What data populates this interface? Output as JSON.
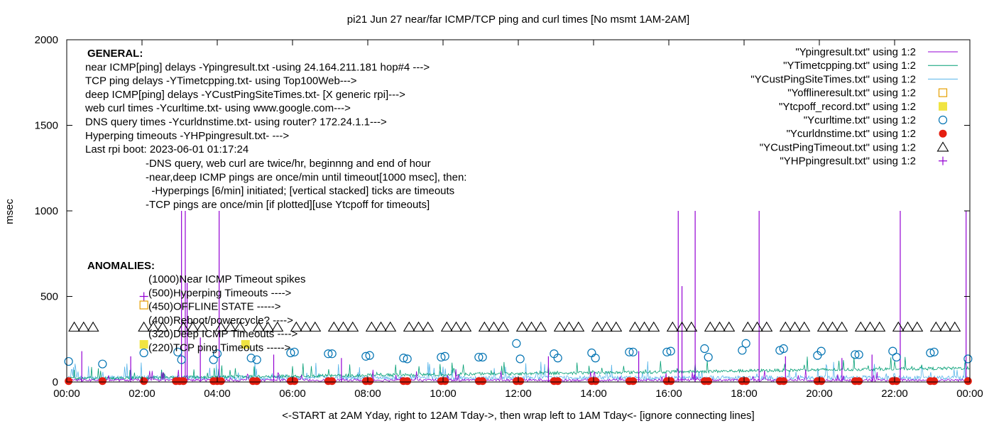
{
  "colors": {
    "ping": "#9400d3",
    "tcp": "#009e73",
    "cust": "#56b4e9",
    "offline": "#e69f00",
    "tcpoff": "#f0e442",
    "curl": "#0072b2",
    "dns": "#e51e10",
    "cust_timeout": "#000000",
    "hping": "#9400d3"
  },
  "chart_data": {
    "type": "line",
    "title": "pi21 Jun 27  near/far ICMP/TCP ping and curl times [No msmt 1AM-2AM]",
    "xlabel": "<-START at 2AM Yday, right to 12AM Tday->, then wrap left to 1AM Tday<- [ignore connecting lines]",
    "ylabel": "msec",
    "xlim": [
      0,
      24
    ],
    "ylim": [
      0,
      2000
    ],
    "grid": false,
    "legend_position": "top-right",
    "x_ticks": [
      "00:00",
      "02:00",
      "04:00",
      "06:00",
      "08:00",
      "10:00",
      "12:00",
      "14:00",
      "16:00",
      "18:00",
      "20:00",
      "22:00",
      "00:00"
    ],
    "y_ticks": [
      "0",
      "500",
      "1000",
      "1500",
      "2000"
    ],
    "y_tick_values": [
      0,
      500,
      1000,
      1500,
      2000
    ],
    "legend": [
      {
        "label": "\"Ypingresult.txt\" using 1:2",
        "kind": "line",
        "color_key": "ping"
      },
      {
        "label": "\"YTimetcpping.txt\" using 1:2",
        "kind": "line",
        "color_key": "tcp"
      },
      {
        "label": "\"YCustPingSiteTimes.txt\" using 1:2",
        "kind": "line",
        "color_key": "cust"
      },
      {
        "label": "\"Yofflineresult.txt\" using 1:2",
        "kind": "open-square",
        "color_key": "offline"
      },
      {
        "label": "\"Ytcpoff_record.txt\" using 1:2",
        "kind": "filled-square",
        "color_key": "tcpoff"
      },
      {
        "label": "\"Ycurltime.txt\" using 1:2",
        "kind": "open-circle",
        "color_key": "curl"
      },
      {
        "label": "\"Ycurldnstime.txt\" using 1:2",
        "kind": "filled-circle",
        "color_key": "dns"
      },
      {
        "label": "\"YCustPingTimeout.txt\" using 1:2",
        "kind": "open-triangle",
        "color_key": "cust_timeout"
      },
      {
        "label": "\"YHPpingresult.txt\" using 1:2",
        "kind": "plus",
        "color_key": "hping"
      }
    ],
    "general_notes": [
      "GENERAL:",
      "near ICMP[ping] delays -Ypingresult.txt -using 24.164.211.181 hop#4 --->",
      "TCP ping delays -YTimetcpping.txt- using Top100Web--->",
      "deep ICMP[ping] delays -YCustPingSiteTimes.txt- [X generic rpi]--->",
      "web curl times -Ycurltime.txt- using www.google.com--->",
      "DNS query times -Ycurldnstime.txt- using router? 172.24.1.1--->",
      "Hyperping timeouts -YHPpingresult.txt- --->",
      "Last rpi boot: 2023-06-01 01:17:24"
    ],
    "indented_notes": [
      "-DNS query, web curl are twice/hr, beginnng and end of hour",
      "-near,deep ICMP pings are once/min until timeout[1000 msec], then:",
      "  -Hyperpings [6/min] initiated; [vertical stacked] ticks are timeouts",
      "-TCP pings are once/min [if plotted][use Ytcpoff for timeouts]"
    ],
    "anomalies": {
      "heading": "ANOMALIES:",
      "items": [
        "(1000)Near ICMP Timeout spikes",
        "(500)Hyperping Timeouts ---->",
        "(450)OFFLINE STATE ----->",
        "(400)Reboot/powercycle? ---->",
        "(320)Deep ICMP Timeouts ---->",
        "(220)TCP ping Timeouts ----->"
      ],
      "marker_examples": [
        {
          "series": "hping",
          "x": 2.05,
          "y": 500
        },
        {
          "series": "offline",
          "x": 2.05,
          "y": 450
        },
        {
          "series": "tcpoff",
          "x": 2.05,
          "y": 220
        },
        {
          "series": "tcpoff",
          "x": 4.75,
          "y": 220
        }
      ]
    },
    "series": {
      "ping_spikes": [
        {
          "x": 3.05,
          "y": 1000
        },
        {
          "x": 3.15,
          "y": 1000
        },
        {
          "x": 3.2,
          "y": 580
        },
        {
          "x": 4.05,
          "y": 1000
        },
        {
          "x": 16.25,
          "y": 1000
        },
        {
          "x": 16.35,
          "y": 560
        },
        {
          "x": 16.7,
          "y": 1000
        },
        {
          "x": 18.4,
          "y": 1000
        },
        {
          "x": 22.15,
          "y": 1000
        },
        {
          "x": 23.9,
          "y": 1000
        },
        {
          "x": 3.55,
          "y": 260
        },
        {
          "x": 0.4,
          "y": 180
        },
        {
          "x": 1.7,
          "y": 150
        },
        {
          "x": 5.5,
          "y": 160
        },
        {
          "x": 7.3,
          "y": 140
        },
        {
          "x": 12.8,
          "y": 150
        },
        {
          "x": 15.2,
          "y": 180
        },
        {
          "x": 19.1,
          "y": 150
        },
        {
          "x": 20.6,
          "y": 140
        },
        {
          "x": 21.4,
          "y": 160
        }
      ],
      "tcp_trend": [
        {
          "x": 0,
          "y": 20
        },
        {
          "x": 4,
          "y": 30
        },
        {
          "x": 8,
          "y": 40
        },
        {
          "x": 12,
          "y": 50
        },
        {
          "x": 16,
          "y": 60
        },
        {
          "x": 20,
          "y": 72
        },
        {
          "x": 24,
          "y": 82
        }
      ],
      "curl": [
        {
          "x": 0.05,
          "y": 120
        },
        {
          "x": 0.95,
          "y": 105
        },
        {
          "x": 2.05,
          "y": 170
        },
        {
          "x": 2.95,
          "y": 175
        },
        {
          "x": 3.05,
          "y": 130
        },
        {
          "x": 3.9,
          "y": 130
        },
        {
          "x": 4.0,
          "y": 165
        },
        {
          "x": 4.9,
          "y": 140
        },
        {
          "x": 5.05,
          "y": 130
        },
        {
          "x": 5.95,
          "y": 170
        },
        {
          "x": 6.05,
          "y": 175
        },
        {
          "x": 6.95,
          "y": 165
        },
        {
          "x": 7.05,
          "y": 165
        },
        {
          "x": 7.95,
          "y": 150
        },
        {
          "x": 8.05,
          "y": 155
        },
        {
          "x": 8.95,
          "y": 140
        },
        {
          "x": 9.05,
          "y": 135
        },
        {
          "x": 9.95,
          "y": 145
        },
        {
          "x": 10.05,
          "y": 150
        },
        {
          "x": 10.95,
          "y": 145
        },
        {
          "x": 11.05,
          "y": 145
        },
        {
          "x": 11.95,
          "y": 225
        },
        {
          "x": 12.05,
          "y": 135
        },
        {
          "x": 12.95,
          "y": 165
        },
        {
          "x": 13.05,
          "y": 140
        },
        {
          "x": 13.95,
          "y": 170
        },
        {
          "x": 14.05,
          "y": 140
        },
        {
          "x": 14.95,
          "y": 175
        },
        {
          "x": 15.05,
          "y": 175
        },
        {
          "x": 15.95,
          "y": 175
        },
        {
          "x": 16.05,
          "y": 180
        },
        {
          "x": 16.95,
          "y": 195
        },
        {
          "x": 17.05,
          "y": 145
        },
        {
          "x": 17.95,
          "y": 185
        },
        {
          "x": 18.05,
          "y": 225
        },
        {
          "x": 18.95,
          "y": 185
        },
        {
          "x": 19.05,
          "y": 195
        },
        {
          "x": 19.95,
          "y": 155
        },
        {
          "x": 20.05,
          "y": 180
        },
        {
          "x": 20.95,
          "y": 160
        },
        {
          "x": 21.05,
          "y": 160
        },
        {
          "x": 21.95,
          "y": 180
        },
        {
          "x": 22.05,
          "y": 145
        },
        {
          "x": 22.95,
          "y": 170
        },
        {
          "x": 23.05,
          "y": 175
        },
        {
          "x": 23.95,
          "y": 135
        }
      ],
      "dns": [
        {
          "x": 0.05,
          "y": 5
        },
        {
          "x": 0.95,
          "y": 5
        },
        {
          "x": 2.05,
          "y": 5
        },
        {
          "x": 2.9,
          "y": 5
        },
        {
          "x": 3.0,
          "y": 5
        },
        {
          "x": 3.1,
          "y": 5
        },
        {
          "x": 3.9,
          "y": 5
        },
        {
          "x": 4.0,
          "y": 5
        },
        {
          "x": 4.1,
          "y": 5
        },
        {
          "x": 4.95,
          "y": 5
        },
        {
          "x": 5.05,
          "y": 5
        },
        {
          "x": 5.95,
          "y": 5
        },
        {
          "x": 6.05,
          "y": 5
        },
        {
          "x": 6.95,
          "y": 5
        },
        {
          "x": 7.05,
          "y": 5
        },
        {
          "x": 7.95,
          "y": 5
        },
        {
          "x": 8.05,
          "y": 5
        },
        {
          "x": 8.95,
          "y": 5
        },
        {
          "x": 9.05,
          "y": 5
        },
        {
          "x": 9.95,
          "y": 5
        },
        {
          "x": 10.05,
          "y": 5
        },
        {
          "x": 10.95,
          "y": 5
        },
        {
          "x": 11.05,
          "y": 5
        },
        {
          "x": 11.95,
          "y": 5
        },
        {
          "x": 12.05,
          "y": 5
        },
        {
          "x": 12.95,
          "y": 5
        },
        {
          "x": 13.05,
          "y": 5
        },
        {
          "x": 13.95,
          "y": 5
        },
        {
          "x": 14.05,
          "y": 5
        },
        {
          "x": 14.95,
          "y": 5
        },
        {
          "x": 15.05,
          "y": 5
        },
        {
          "x": 15.95,
          "y": 5
        },
        {
          "x": 16.05,
          "y": 5
        },
        {
          "x": 16.95,
          "y": 5
        },
        {
          "x": 17.05,
          "y": 5
        },
        {
          "x": 17.95,
          "y": 5
        },
        {
          "x": 18.05,
          "y": 5
        },
        {
          "x": 18.95,
          "y": 5
        },
        {
          "x": 19.05,
          "y": 5
        },
        {
          "x": 19.95,
          "y": 5
        },
        {
          "x": 20.05,
          "y": 5
        },
        {
          "x": 20.95,
          "y": 5
        },
        {
          "x": 21.05,
          "y": 5
        },
        {
          "x": 21.95,
          "y": 5
        },
        {
          "x": 22.05,
          "y": 5
        },
        {
          "x": 22.95,
          "y": 5
        },
        {
          "x": 23.05,
          "y": 5
        },
        {
          "x": 23.95,
          "y": 5
        }
      ],
      "cust_timeout": [
        {
          "x": 0.2,
          "y": 320
        },
        {
          "x": 0.45,
          "y": 320
        },
        {
          "x": 0.7,
          "y": 320
        },
        {
          "x": 2.05,
          "y": 320
        },
        {
          "x": 2.3,
          "y": 320
        },
        {
          "x": 2.55,
          "y": 320
        },
        {
          "x": 3.1,
          "y": 320
        },
        {
          "x": 3.35,
          "y": 320
        },
        {
          "x": 3.6,
          "y": 320
        },
        {
          "x": 4.1,
          "y": 320
        },
        {
          "x": 4.35,
          "y": 320
        },
        {
          "x": 4.6,
          "y": 320
        },
        {
          "x": 5.1,
          "y": 320
        },
        {
          "x": 5.35,
          "y": 320
        },
        {
          "x": 5.6,
          "y": 320
        },
        {
          "x": 6.1,
          "y": 320
        },
        {
          "x": 6.35,
          "y": 320
        },
        {
          "x": 6.6,
          "y": 320
        },
        {
          "x": 7.1,
          "y": 320
        },
        {
          "x": 7.35,
          "y": 320
        },
        {
          "x": 7.6,
          "y": 320
        },
        {
          "x": 8.1,
          "y": 320
        },
        {
          "x": 8.35,
          "y": 320
        },
        {
          "x": 8.6,
          "y": 320
        },
        {
          "x": 9.1,
          "y": 320
        },
        {
          "x": 9.35,
          "y": 320
        },
        {
          "x": 9.6,
          "y": 320
        },
        {
          "x": 10.1,
          "y": 320
        },
        {
          "x": 10.35,
          "y": 320
        },
        {
          "x": 10.6,
          "y": 320
        },
        {
          "x": 11.1,
          "y": 320
        },
        {
          "x": 11.35,
          "y": 320
        },
        {
          "x": 11.6,
          "y": 320
        },
        {
          "x": 12.1,
          "y": 320
        },
        {
          "x": 12.35,
          "y": 320
        },
        {
          "x": 12.6,
          "y": 320
        },
        {
          "x": 13.1,
          "y": 320
        },
        {
          "x": 13.35,
          "y": 320
        },
        {
          "x": 13.6,
          "y": 320
        },
        {
          "x": 14.1,
          "y": 320
        },
        {
          "x": 14.35,
          "y": 320
        },
        {
          "x": 14.6,
          "y": 320
        },
        {
          "x": 15.1,
          "y": 320
        },
        {
          "x": 15.35,
          "y": 320
        },
        {
          "x": 15.6,
          "y": 320
        },
        {
          "x": 16.1,
          "y": 320
        },
        {
          "x": 16.35,
          "y": 320
        },
        {
          "x": 16.6,
          "y": 320
        },
        {
          "x": 17.1,
          "y": 320
        },
        {
          "x": 17.35,
          "y": 320
        },
        {
          "x": 17.6,
          "y": 320
        },
        {
          "x": 18.1,
          "y": 320
        },
        {
          "x": 18.35,
          "y": 320
        },
        {
          "x": 18.6,
          "y": 320
        },
        {
          "x": 19.1,
          "y": 320
        },
        {
          "x": 19.35,
          "y": 320
        },
        {
          "x": 19.6,
          "y": 320
        },
        {
          "x": 20.1,
          "y": 320
        },
        {
          "x": 20.35,
          "y": 320
        },
        {
          "x": 20.6,
          "y": 320
        },
        {
          "x": 21.1,
          "y": 320
        },
        {
          "x": 21.35,
          "y": 320
        },
        {
          "x": 21.6,
          "y": 320
        },
        {
          "x": 22.1,
          "y": 320
        },
        {
          "x": 22.35,
          "y": 320
        },
        {
          "x": 22.6,
          "y": 320
        },
        {
          "x": 23.1,
          "y": 320
        },
        {
          "x": 23.35,
          "y": 320
        },
        {
          "x": 23.6,
          "y": 320
        }
      ]
    }
  }
}
